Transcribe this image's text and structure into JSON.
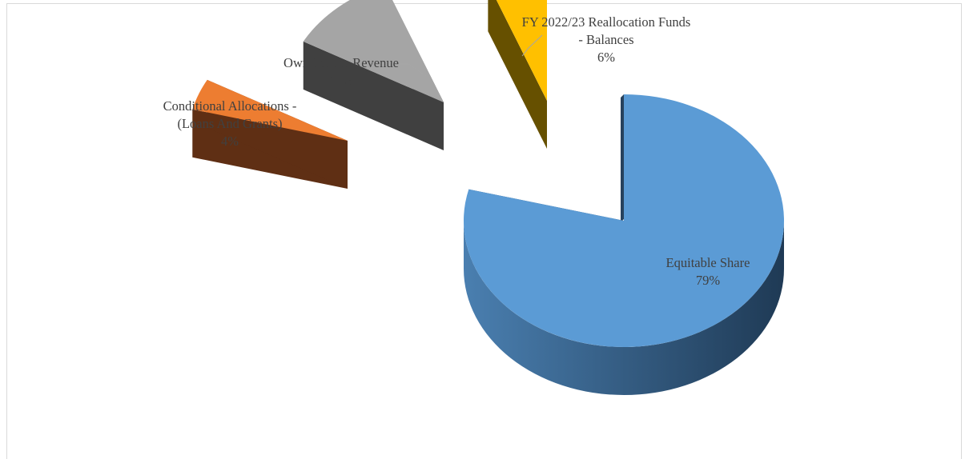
{
  "chart_data": {
    "type": "pie",
    "style": "3d-exploded",
    "title": "",
    "slices": [
      {
        "name": "Equitable Share",
        "label_lines": [
          "Equitable Share",
          "79%"
        ],
        "value": 79,
        "color": "#5b9bd5",
        "dark": "#2e4d6b"
      },
      {
        "name": "Conditional Allocations - (Loans And Grants)",
        "label_lines": [
          "Conditional Allocations -",
          "(Loans And Grants)",
          "4%"
        ],
        "value": 4,
        "color": "#ed7d31",
        "dark": "#5f2f14"
      },
      {
        "name": "Own Source Revenue",
        "label_lines": [
          "Own Source Revenue",
          "11%"
        ],
        "value": 11,
        "color": "#a5a5a5",
        "dark": "#404040"
      },
      {
        "name": "FY 2022/23 Reallocation Funds - Balances",
        "label_lines": [
          "FY 2022/23 Reallocation Funds",
          "- Balances",
          "6%"
        ],
        "value": 6,
        "color": "#ffc000",
        "dark": "#665000"
      }
    ],
    "legend": "none",
    "data_labels": "category and percentage"
  }
}
